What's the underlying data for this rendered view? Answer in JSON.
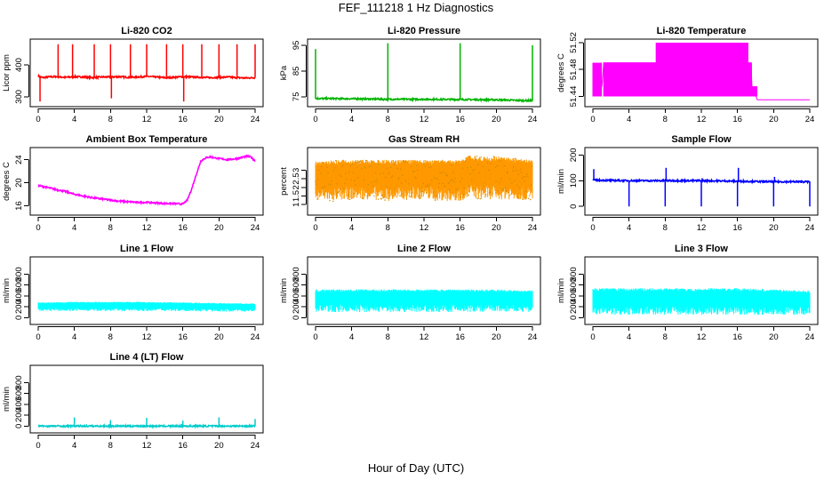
{
  "title": "FEF_111218  1 Hz Diagnostics",
  "xlabel": "Hour of Day (UTC)",
  "chart_data": [
    {
      "type": "line",
      "title": "Li-820 CO2",
      "ylabel": "Licor ppm",
      "color": "#ff0000",
      "xlim": [
        0,
        24
      ],
      "ylim": [
        280,
        470
      ],
      "xticks": [
        0,
        4,
        8,
        12,
        16,
        20,
        24
      ],
      "yticks": [
        300,
        400
      ],
      "series": [
        {
          "x": [
            0,
            0.5,
            1,
            2,
            3,
            4,
            5,
            6,
            7,
            8,
            9,
            10,
            11,
            12,
            13,
            14,
            15,
            16,
            17,
            18,
            19,
            20,
            21,
            22,
            23,
            24
          ],
          "y": [
            365,
            360,
            362,
            363,
            361,
            363,
            362,
            360,
            362,
            362,
            363,
            361,
            362,
            364,
            362,
            360,
            361,
            363,
            362,
            361,
            360,
            361,
            362,
            360,
            359,
            360
          ]
        }
      ],
      "spikes": [
        {
          "x": 0.2,
          "y": 285
        },
        {
          "x": 2.2,
          "y": 465
        },
        {
          "x": 3.8,
          "y": 465
        },
        {
          "x": 6.2,
          "y": 465
        },
        {
          "x": 8.0,
          "y": 465
        },
        {
          "x": 8.1,
          "y": 295
        },
        {
          "x": 10.2,
          "y": 465
        },
        {
          "x": 12.0,
          "y": 465
        },
        {
          "x": 14.2,
          "y": 465
        },
        {
          "x": 16.0,
          "y": 465
        },
        {
          "x": 16.1,
          "y": 285
        },
        {
          "x": 18.1,
          "y": 465
        },
        {
          "x": 20.0,
          "y": 465
        },
        {
          "x": 22.0,
          "y": 465
        },
        {
          "x": 24.0,
          "y": 465
        }
      ]
    },
    {
      "type": "line",
      "title": "Li-820 Pressure",
      "ylabel": "kPa",
      "color": "#00b400",
      "xlim": [
        0,
        24
      ],
      "ylim": [
        72.5,
        96
      ],
      "xticks": [
        0,
        4,
        8,
        12,
        16,
        20,
        24
      ],
      "yticks": [
        75,
        85,
        95
      ],
      "series": [
        {
          "x": [
            0,
            4,
            8,
            12,
            16,
            20,
            23,
            24
          ],
          "y": [
            74.3,
            74.2,
            74.0,
            74.0,
            73.9,
            73.8,
            73.5,
            73.5
          ]
        }
      ],
      "spikes": [
        {
          "x": 0.0,
          "y": 93.5
        },
        {
          "x": 8.0,
          "y": 95.8
        },
        {
          "x": 16.0,
          "y": 95.8
        },
        {
          "x": 24.0,
          "y": 95.0
        }
      ]
    },
    {
      "type": "step",
      "title": "Li-820 Temperature",
      "ylabel": "degrees C",
      "color": "#ff00ff",
      "xlim": [
        0,
        24
      ],
      "ylim": [
        51.43,
        51.52
      ],
      "xticks": [
        0,
        4,
        8,
        12,
        16,
        20,
        24
      ],
      "yticks": [
        51.44,
        51.48,
        51.52
      ],
      "series": [
        {
          "x": [
            0,
            1,
            1.2,
            17.5,
            17.6,
            18.2,
            24
          ],
          "y": [
            51.455,
            51.455,
            51.49,
            51.49,
            51.455,
            51.435,
            51.435
          ]
        }
      ],
      "bands": [
        {
          "x0": 0,
          "x1": 1,
          "lo": 51.44,
          "hi": 51.49
        },
        {
          "x0": 1.2,
          "x1": 17.6,
          "lo": 51.44,
          "hi": 51.49
        },
        {
          "x0": 7.0,
          "x1": 17.2,
          "lo": 51.49,
          "hi": 51.52
        },
        {
          "x0": 17.6,
          "x1": 18.2,
          "lo": 51.44,
          "hi": 51.455
        }
      ]
    },
    {
      "type": "line",
      "title": "Ambient Box Temperature",
      "ylabel": "degrees C",
      "color": "#ff00ff",
      "xlim": [
        0,
        24
      ],
      "ylim": [
        15,
        25.5
      ],
      "xticks": [
        0,
        4,
        8,
        12,
        16,
        20,
        24
      ],
      "yticks": [
        16,
        20,
        24
      ],
      "series": [
        {
          "x": [
            0,
            1,
            2,
            3,
            4,
            5,
            6,
            7,
            8,
            9,
            10,
            11,
            12,
            13,
            14,
            15,
            16,
            16.5,
            17,
            17.5,
            18,
            18.5,
            19,
            20,
            21,
            22,
            23,
            23.5,
            24
          ],
          "y": [
            19.5,
            19.2,
            18.8,
            18.5,
            18.0,
            17.7,
            17.4,
            17.2,
            17.0,
            16.8,
            16.7,
            16.6,
            16.6,
            16.5,
            16.4,
            16.4,
            16.3,
            17.0,
            19.0,
            21.5,
            23.8,
            24.3,
            24.5,
            24.2,
            24.0,
            24.2,
            24.6,
            24.5,
            23.8
          ]
        }
      ]
    },
    {
      "type": "band",
      "title": "Gas Stream RH",
      "ylabel": "percent",
      "color": "#ff9900",
      "color2": "#cc8800",
      "xlim": [
        0,
        24
      ],
      "ylim": [
        0.6,
        4.1
      ],
      "xticks": [
        0,
        4,
        8,
        12,
        16,
        20,
        24
      ],
      "yticks": [
        1.0,
        1.5,
        2.0,
        2.5,
        3.0
      ],
      "series": [
        {
          "x": [
            0,
            2,
            4,
            6,
            8,
            10,
            12,
            14,
            16,
            17,
            18,
            20,
            22,
            24
          ],
          "lo": [
            1.2,
            1.2,
            1.3,
            1.3,
            1.2,
            1.3,
            1.3,
            1.2,
            1.2,
            1.4,
            1.3,
            1.3,
            1.3,
            1.2
          ],
          "hi": [
            3.5,
            3.6,
            3.6,
            3.6,
            3.6,
            3.6,
            3.6,
            3.6,
            3.6,
            3.9,
            3.8,
            3.8,
            3.7,
            3.6
          ]
        }
      ]
    },
    {
      "type": "line",
      "title": "Sample Flow",
      "ylabel": "ml/min",
      "color": "#0000ff",
      "xlim": [
        0,
        24
      ],
      "ylim": [
        -20,
        215
      ],
      "xticks": [
        0,
        4,
        8,
        12,
        16,
        20,
        24
      ],
      "yticks": [
        0,
        100,
        200
      ],
      "series": [
        {
          "x": [
            0,
            4,
            8,
            12,
            16,
            20,
            24
          ],
          "y": [
            102,
            100,
            100,
            100,
            98,
            96,
            96
          ]
        }
      ],
      "spikes": [
        {
          "x": 0.1,
          "y": 145
        },
        {
          "x": 4.0,
          "y": 0
        },
        {
          "x": 8.0,
          "y": 0
        },
        {
          "x": 8.1,
          "y": 150
        },
        {
          "x": 12.0,
          "y": 0
        },
        {
          "x": 12.1,
          "y": 110
        },
        {
          "x": 16.0,
          "y": 0
        },
        {
          "x": 16.1,
          "y": 150
        },
        {
          "x": 20.0,
          "y": 0
        },
        {
          "x": 20.1,
          "y": 115
        },
        {
          "x": 24.0,
          "y": 0
        }
      ]
    },
    {
      "type": "band",
      "title": "Line 1 Flow",
      "ylabel": "ml/min",
      "color": "#00ffff",
      "xlim": [
        0,
        24
      ],
      "ylim": [
        -60,
        1050
      ],
      "xticks": [
        0,
        4,
        8,
        12,
        16,
        20,
        24
      ],
      "yticks": [
        0,
        200,
        400,
        600,
        800
      ],
      "series": [
        {
          "x": [
            0,
            4,
            8,
            12,
            16,
            20,
            24
          ],
          "lo": [
            120,
            120,
            120,
            120,
            120,
            110,
            110
          ],
          "hi": [
            280,
            290,
            290,
            290,
            280,
            270,
            260
          ]
        }
      ]
    },
    {
      "type": "band",
      "title": "Line 2 Flow",
      "ylabel": "ml/min",
      "color": "#00ffff",
      "xlim": [
        0,
        24
      ],
      "ylim": [
        -60,
        1050
      ],
      "xticks": [
        0,
        4,
        8,
        12,
        16,
        20,
        24
      ],
      "yticks": [
        0,
        200,
        400,
        600,
        800
      ],
      "series": [
        {
          "x": [
            0,
            4,
            8,
            12,
            16,
            20,
            24
          ],
          "lo": [
            100,
            100,
            100,
            100,
            100,
            100,
            100
          ],
          "hi": [
            520,
            520,
            520,
            520,
            520,
            520,
            500
          ]
        }
      ]
    },
    {
      "type": "band",
      "title": "Line 3 Flow",
      "ylabel": "ml/min",
      "color": "#00ffff",
      "xlim": [
        0,
        24
      ],
      "ylim": [
        -60,
        1050
      ],
      "xticks": [
        0,
        4,
        8,
        12,
        16,
        20,
        24
      ],
      "yticks": [
        0,
        200,
        400,
        600,
        800
      ],
      "series": [
        {
          "x": [
            0,
            4,
            8,
            12,
            16,
            20,
            24
          ],
          "lo": [
            50,
            50,
            50,
            50,
            50,
            50,
            50
          ],
          "hi": [
            540,
            540,
            540,
            540,
            540,
            520,
            500
          ]
        }
      ]
    },
    {
      "type": "line",
      "title": "Line 4 (LT) Flow",
      "ylabel": "ml/min",
      "color": "#00cccc",
      "xlim": [
        0,
        24
      ],
      "ylim": [
        -60,
        1050
      ],
      "xticks": [
        0,
        4,
        8,
        12,
        16,
        20,
        24
      ],
      "yticks": [
        0,
        200,
        400,
        600,
        800
      ],
      "series": [
        {
          "x": [
            0,
            4,
            8,
            12,
            16,
            20,
            24
          ],
          "y": [
            0,
            0,
            0,
            0,
            0,
            0,
            0
          ]
        }
      ],
      "spikes": [
        {
          "x": 4.0,
          "y": 160
        },
        {
          "x": 8.0,
          "y": 110
        },
        {
          "x": 12.0,
          "y": 150
        },
        {
          "x": 16.0,
          "y": 100
        },
        {
          "x": 20.0,
          "y": 160
        },
        {
          "x": 24.0,
          "y": 130
        }
      ]
    }
  ]
}
